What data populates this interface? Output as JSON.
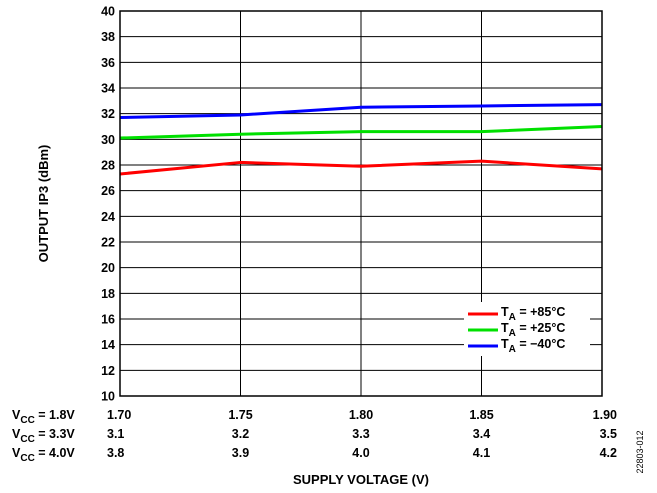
{
  "chart_data": {
    "type": "line",
    "xlabel": "SUPPLY VOLTAGE (V)",
    "ylabel": "OUTPUT IP3 (dBm)",
    "xlim": [
      1.7,
      1.9
    ],
    "ylim": [
      10,
      40
    ],
    "grid": true,
    "legend_position": "bottom-right",
    "x": [
      1.7,
      1.75,
      1.8,
      1.85,
      1.9
    ],
    "x_tick_labels": [
      "1.70",
      "1.75",
      "1.80",
      "1.85",
      "1.90"
    ],
    "y_ticks": [
      10,
      12,
      14,
      16,
      18,
      20,
      22,
      24,
      26,
      28,
      30,
      32,
      34,
      36,
      38,
      40
    ],
    "extra_x_rows": [
      {
        "label_main": "V",
        "label_sub": "CC",
        "label_rest": " = 1.8V",
        "values": [
          "1.70",
          "1.75",
          "1.80",
          "1.85",
          "1.90"
        ]
      },
      {
        "label_main": "V",
        "label_sub": "CC",
        "label_rest": " = 3.3V",
        "values": [
          "3.1",
          "3.2",
          "3.3",
          "3.4",
          "3.5"
        ]
      },
      {
        "label_main": "V",
        "label_sub": "CC",
        "label_rest": " = 4.0V",
        "values": [
          "3.8",
          "3.9",
          "4.0",
          "4.1",
          "4.2"
        ]
      }
    ],
    "series": [
      {
        "label_main": "T",
        "label_sub": "A",
        "label_rest": " = +85°C",
        "color": "#ff0000",
        "values": [
          27.3,
          28.2,
          27.9,
          28.3,
          27.7
        ]
      },
      {
        "label_main": "T",
        "label_sub": "A",
        "label_rest": " = +25°C",
        "color": "#00e000",
        "values": [
          30.1,
          30.4,
          30.6,
          30.6,
          31.0
        ]
      },
      {
        "label_main": "T",
        "label_sub": "A",
        "label_rest": " = −40°C",
        "color": "#0000ff",
        "values": [
          31.7,
          31.9,
          32.5,
          32.6,
          32.7
        ]
      }
    ]
  },
  "figure_code": "22803-012"
}
